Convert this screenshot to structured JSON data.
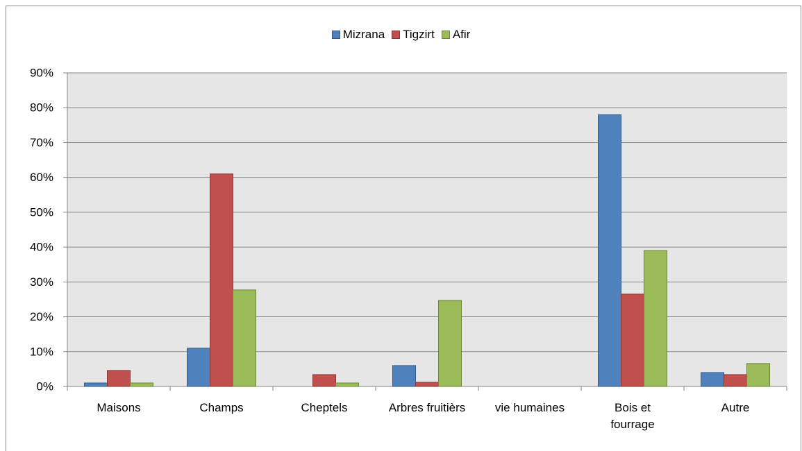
{
  "chart_data": {
    "type": "bar",
    "categories": [
      "Maisons",
      "Champs",
      "Cheptels",
      "Arbres fruitièrs",
      "vie humaines",
      "Bois et fourrage",
      "Autre"
    ],
    "series": [
      {
        "name": "Mizrana",
        "color": "#4f81bd",
        "values": [
          1,
          11,
          0,
          6,
          0,
          78,
          4
        ]
      },
      {
        "name": "Tigzirt",
        "color": "#c0504d",
        "values": [
          4.6,
          61,
          3.4,
          1.2,
          0,
          26.5,
          3.4
        ]
      },
      {
        "name": "Afir",
        "color": "#9bbb59",
        "values": [
          1,
          27.7,
          1,
          24.7,
          0,
          39,
          6.6
        ]
      }
    ],
    "ylim": [
      0,
      90
    ],
    "yticks": [
      {
        "value": 0,
        "label": "0%"
      },
      {
        "value": 10,
        "label": "10%"
      },
      {
        "value": 20,
        "label": "20%"
      },
      {
        "value": 30,
        "label": "30%"
      },
      {
        "value": 40,
        "label": "40%"
      },
      {
        "value": 50,
        "label": "50%"
      },
      {
        "value": 60,
        "label": "60%"
      },
      {
        "value": 70,
        "label": "70%"
      },
      {
        "value": 80,
        "label": "80%"
      },
      {
        "value": 90,
        "label": "90%"
      }
    ],
    "grid": true,
    "legend": "top"
  }
}
